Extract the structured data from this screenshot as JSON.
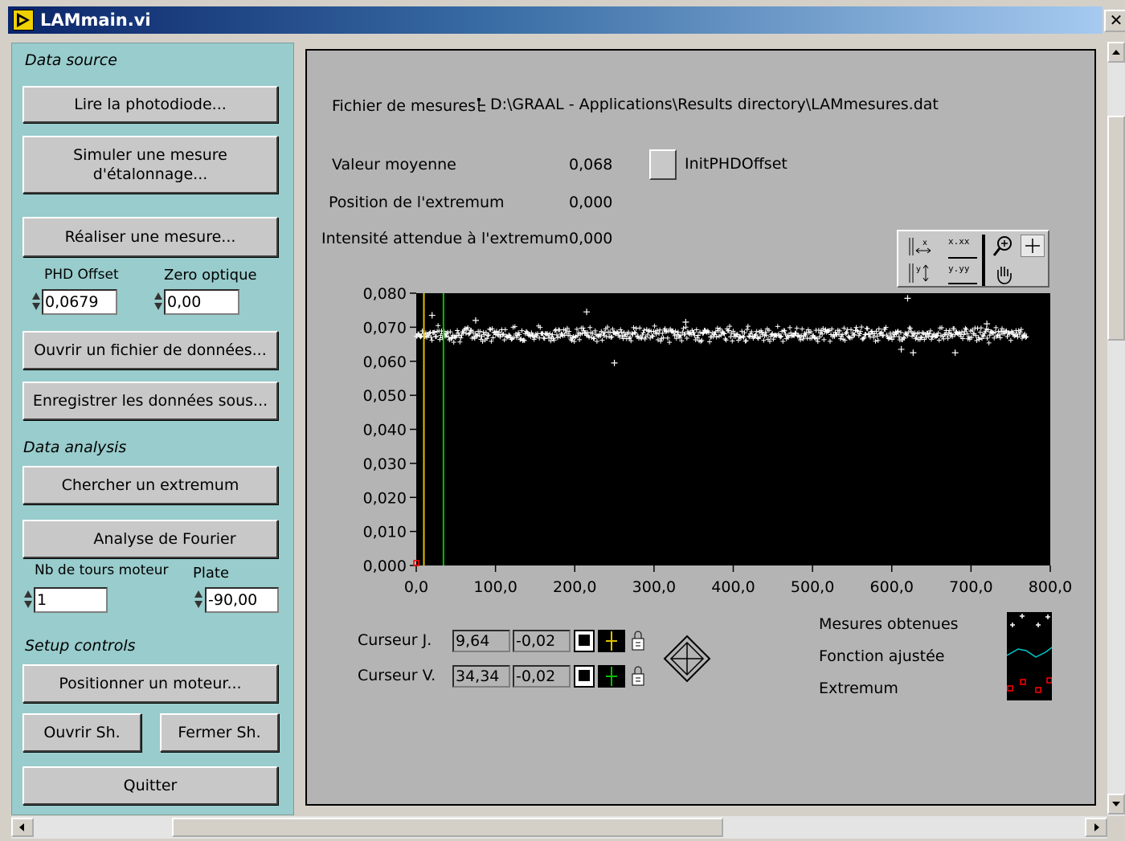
{
  "window": {
    "title": "LAMmain.vi",
    "close_glyph": "✕"
  },
  "left": {
    "data_source_label": "Data source",
    "btn_read_photodiode": "Lire la photodiode...",
    "btn_simulate": "Simuler une mesure\nd'étalonnage...",
    "btn_measure": "Réaliser une mesure...",
    "phd_offset_label": "PHD Offset",
    "phd_offset_value": "0,0679",
    "zero_optique_label": "Zero optique",
    "zero_optique_value": "0,00",
    "btn_open_file": "Ouvrir un fichier de données...",
    "btn_save_as": "Enregistrer les données sous...",
    "data_analysis_label": "Data analysis",
    "btn_find_extremum": "Chercher un extremum",
    "btn_fourier": "Analyse de Fourier",
    "nb_tours_label": "Nb de tours moteur",
    "nb_tours_value": "1",
    "plate_label": "Plate",
    "plate_value": "-90,00",
    "setup_label": "Setup controls",
    "btn_position_motor": "Positionner un moteur...",
    "btn_open_sh": "Ouvrir Sh.",
    "btn_close_sh": "Fermer Sh.",
    "btn_quit": "Quitter"
  },
  "right": {
    "file_label": "Fichier de mesures",
    "file_path": "D:\\GRAAL - Applications\\Results directory\\LAMmesures.dat",
    "mean_label": "Valeur moyenne",
    "mean_value": "0,068",
    "init_phd_label": "InitPHDOffset",
    "extremum_pos_label": "Position de l'extremum",
    "extremum_pos_value": "0,000",
    "expected_int_label": "Intensité attendue à l'extremum",
    "expected_int_value": "0,000",
    "cursor_j_label": "Curseur J.",
    "cursor_j_x": "9,64",
    "cursor_j_y": "-0,02",
    "cursor_v_label": "Curseur V.",
    "cursor_v_x": "34,34",
    "cursor_v_y": "-0,02",
    "legend": [
      "Mesures obtenues",
      "Fonction ajustée",
      "Extremum"
    ],
    "palette_x_format": "x.xx",
    "palette_y_format": "y.yy"
  },
  "chart_data": {
    "type": "scatter",
    "x_ticks": [
      "0,0",
      "100,0",
      "200,0",
      "300,0",
      "400,0",
      "500,0",
      "600,0",
      "700,0",
      "800,0"
    ],
    "y_ticks": [
      "0,080",
      "0,070",
      "0,060",
      "0,050",
      "0,040",
      "0,030",
      "0,020",
      "0,010",
      "0,000"
    ],
    "xlim": [
      0,
      800
    ],
    "ylim": [
      0,
      0.08
    ],
    "series": [
      {
        "name": "Mesures obtenues",
        "color": "#ffffff",
        "marker": "+",
        "x_range": [
          0,
          770
        ],
        "y_mean": 0.068,
        "y_spread": 0.002
      }
    ],
    "outliers": [
      [
        20,
        0.0735
      ],
      [
        75,
        0.072
      ],
      [
        215,
        0.0745
      ],
      [
        250,
        0.0595
      ],
      [
        340,
        0.0715
      ],
      [
        612,
        0.0635
      ],
      [
        627,
        0.0625
      ],
      [
        620,
        0.0785
      ],
      [
        720,
        0.071
      ],
      [
        680,
        0.0625
      ]
    ],
    "cursors": [
      {
        "name": "Curseur J.",
        "x": 9.64,
        "color": "#e0c000"
      },
      {
        "name": "Curseur V.",
        "x": 34.34,
        "color": "#00c000"
      }
    ],
    "grid": false,
    "legend_position": "bottom-right"
  }
}
